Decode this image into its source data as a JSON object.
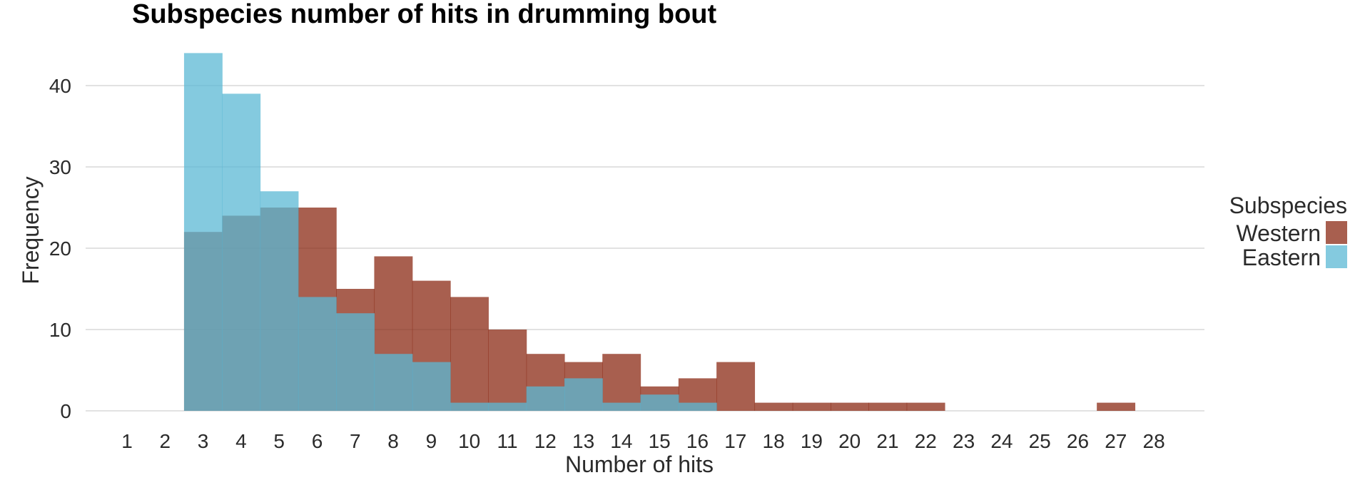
{
  "chart_data": {
    "type": "bar",
    "title": "Subspecies number of hits in drumming bout",
    "xlabel": "Number of hits",
    "ylabel": "Frequency",
    "categories": [
      "1",
      "2",
      "3",
      "4",
      "5",
      "6",
      "7",
      "8",
      "9",
      "10",
      "11",
      "12",
      "13",
      "14",
      "15",
      "16",
      "17",
      "18",
      "19",
      "20",
      "21",
      "22",
      "23",
      "24",
      "25",
      "26",
      "27",
      "28"
    ],
    "ylim": [
      0,
      45
    ],
    "yticks": [
      0,
      10,
      20,
      30,
      40
    ],
    "grid": true,
    "legend": {
      "title": "Subspecies",
      "position": "right",
      "entries": [
        "Western",
        "Eastern"
      ]
    },
    "series": [
      {
        "name": "Western",
        "color": "#8b2a14",
        "opacity": 0.75,
        "values": [
          0,
          0,
          22,
          24,
          25,
          25,
          15,
          19,
          16,
          14,
          10,
          7,
          6,
          7,
          3,
          4,
          6,
          1,
          1,
          1,
          1,
          1,
          0,
          0,
          0,
          0,
          1,
          0
        ]
      },
      {
        "name": "Eastern",
        "color": "#5bb8d4",
        "opacity": 0.75,
        "values": [
          0,
          0,
          44,
          39,
          27,
          14,
          12,
          7,
          6,
          1,
          1,
          3,
          4,
          1,
          2,
          1,
          0,
          0,
          0,
          0,
          0,
          0,
          0,
          0,
          0,
          0,
          0,
          0
        ]
      }
    ]
  }
}
